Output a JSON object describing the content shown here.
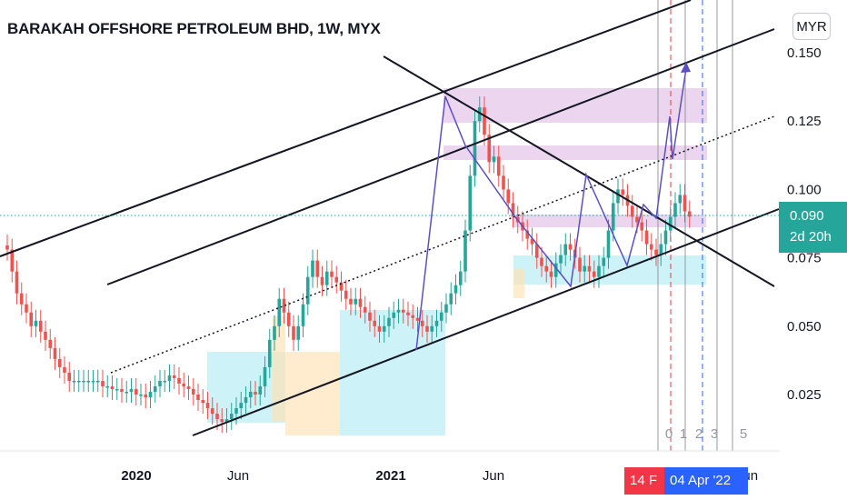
{
  "header": {
    "title": "BARAKAH OFFSHORE PETROLEUM BHD, 1W, MYX",
    "currency": "MYR"
  },
  "price_badge": {
    "price": "0.090",
    "countdown": "2d 20h"
  },
  "date_badges": {
    "red": "14 F",
    "blue": "04 Apr '22"
  },
  "colors": {
    "up": "#26a69a",
    "down": "#ef5350",
    "trendline": "#131722",
    "pattern": "#5b4fc4",
    "zone_purple": "#e1bee7",
    "zone_cyan": "#b2ebf2",
    "zone_orange": "#ffe0b2",
    "red_dash": "#f23645",
    "blue_dash": "#2962ff"
  },
  "chart_data": {
    "type": "candlestick",
    "title": "BARAKAH OFFSHORE PETROLEUM BHD, 1W, MYX",
    "currency": "MYR",
    "y_axis": {
      "ticks": [
        "0.150",
        "0.125",
        "0.100",
        "0.075",
        "0.050",
        "0.025"
      ],
      "range": [
        0.0,
        0.155
      ]
    },
    "x_axis": {
      "ticks": [
        "2020",
        "Jun",
        "2021",
        "Jun",
        "Jun"
      ],
      "range": [
        "2019-03-01",
        "2022-07-01"
      ]
    },
    "last_price": 0.09,
    "bar_countdown": "2d 20h",
    "grid": false,
    "fib_time_labels": [
      "0",
      "1",
      "2",
      "3",
      "5"
    ],
    "weekly_closes": [
      0.078,
      0.07,
      0.062,
      0.058,
      0.055,
      0.05,
      0.052,
      0.048,
      0.045,
      0.042,
      0.038,
      0.035,
      0.033,
      0.03,
      0.03,
      0.03,
      0.03,
      0.03,
      0.03,
      0.03,
      0.028,
      0.028,
      0.027,
      0.027,
      0.026,
      0.026,
      0.027,
      0.025,
      0.025,
      0.024,
      0.026,
      0.028,
      0.03,
      0.03,
      0.032,
      0.031,
      0.029,
      0.028,
      0.027,
      0.025,
      0.023,
      0.022,
      0.02,
      0.018,
      0.016,
      0.015,
      0.016,
      0.018,
      0.02,
      0.022,
      0.024,
      0.026,
      0.025,
      0.028,
      0.035,
      0.045,
      0.05,
      0.06,
      0.055,
      0.05,
      0.045,
      0.05,
      0.058,
      0.068,
      0.074,
      0.068,
      0.065,
      0.07,
      0.068,
      0.066,
      0.063,
      0.06,
      0.058,
      0.06,
      0.057,
      0.055,
      0.052,
      0.05,
      0.048,
      0.05,
      0.053,
      0.055,
      0.056,
      0.055,
      0.054,
      0.053,
      0.052,
      0.05,
      0.048,
      0.05,
      0.052,
      0.055,
      0.058,
      0.062,
      0.065,
      0.07,
      0.085,
      0.105,
      0.125,
      0.13,
      0.12,
      0.11,
      0.112,
      0.105,
      0.1,
      0.095,
      0.09,
      0.088,
      0.085,
      0.082,
      0.08,
      0.075,
      0.072,
      0.07,
      0.068,
      0.073,
      0.076,
      0.08,
      0.078,
      0.075,
      0.07,
      0.072,
      0.07,
      0.068,
      0.072,
      0.075,
      0.085,
      0.095,
      0.1,
      0.098,
      0.094,
      0.09,
      0.088,
      0.085,
      0.08,
      0.078,
      0.076,
      0.08,
      0.085,
      0.09,
      0.095,
      0.098,
      0.092,
      0.09
    ]
  }
}
